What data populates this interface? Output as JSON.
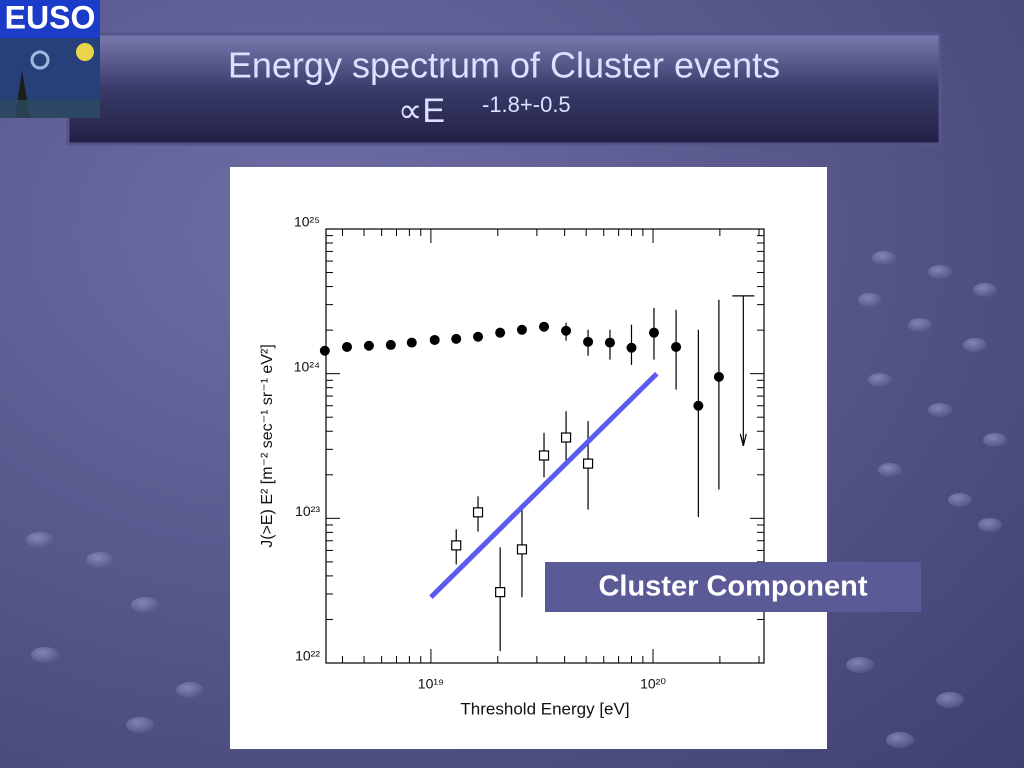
{
  "logo": "EUSO",
  "chart_data": {
    "type": "scatter",
    "title": "Energy spectrum of Cluster events",
    "subtitle": "∝E",
    "subtitle_exponent": "-1.8+-0.5",
    "xlabel": "Threshold Energy [eV]",
    "ylabel": "J(>E) E² [m⁻² sec⁻¹ sr⁻¹ eV²]",
    "annotation": "Cluster Component",
    "xscale": "log",
    "yscale": "log",
    "xlim": [
      3.37e+18,
      3.16e+20
    ],
    "ylim": [
      1e+22,
      1e+25
    ],
    "xticks": [
      {
        "value": 1e+19,
        "label": "10¹⁹"
      },
      {
        "value": 1e+20,
        "label": "10²⁰"
      }
    ],
    "yticks": [
      {
        "value": 1e+22,
        "label": "10²²"
      },
      {
        "value": 1e+23,
        "label": "10²³"
      },
      {
        "value": 1e+24,
        "label": "10²⁴"
      },
      {
        "value": 1e+25,
        "label": "10²⁵"
      }
    ],
    "xminorticks": [
      4e+18,
      5e+18,
      6e+18,
      7e+18,
      8e+18,
      9e+18,
      2e+19,
      3e+19,
      4e+19,
      5e+19,
      6e+19,
      7e+19,
      8e+19,
      9e+19,
      2e+20,
      3e+20
    ],
    "yminorticks": [
      2e+22,
      3e+22,
      4e+22,
      5e+22,
      6e+22,
      7e+22,
      8e+22,
      9e+22,
      2e+23,
      3e+23,
      4e+23,
      5e+23,
      6e+23,
      7e+23,
      8e+23,
      9e+23,
      2e+24,
      3e+24,
      4e+24,
      5e+24,
      6e+24,
      7e+24,
      8e+24,
      9e+24
    ],
    "series": [
      {
        "marker": "circle",
        "color": "#000000",
        "x": [
          3.33e+18,
          4.19e+18,
          5.26e+18,
          6.6e+18,
          8.2e+18,
          1.04e+19,
          1.3e+19,
          1.63e+19,
          2.05e+19,
          2.57e+19,
          3.23e+19,
          4.06e+19,
          5.1e+19,
          6.4e+19,
          8e+19,
          1.01e+20,
          1.27e+20,
          1.6e+20,
          1.98e+20
        ],
        "values": [
          1.44e+24,
          1.53e+24,
          1.56e+24,
          1.58e+24,
          1.64e+24,
          1.71e+24,
          1.74e+24,
          1.8e+24,
          1.92e+24,
          2.01e+24,
          2.11e+24,
          1.98e+24,
          1.66e+24,
          1.64e+24,
          1.51e+24,
          1.92e+24,
          1.53e+24,
          6e+23,
          9.5e+23
        ],
        "lower": [
          null,
          null,
          null,
          null,
          null,
          null,
          null,
          null,
          null,
          null,
          null,
          1.69e+24,
          1.33e+24,
          1.25e+24,
          1.15e+24,
          1.25e+24,
          7.76e+23,
          1.02e+23,
          1.58e+23
        ],
        "upper": [
          null,
          null,
          null,
          null,
          null,
          null,
          null,
          null,
          null,
          null,
          null,
          2.25e+24,
          2.01e+24,
          2.01e+24,
          2.18e+24,
          2.85e+24,
          2.76e+24,
          2.01e+24,
          3.24e+24
        ]
      },
      {
        "marker": "square",
        "color": "#000000",
        "x": [
          1.3e+19,
          1.63e+19,
          2.05e+19,
          2.57e+19,
          3.23e+19,
          4.06e+19,
          5.1e+19
        ],
        "values": [
          6.5e+22,
          1.1e+23,
          3.09e+22,
          6.1e+22,
          2.72e+23,
          3.62e+23,
          2.39e+23
        ],
        "lower": [
          4.8e+22,
          8.1e+22,
          1.21e+22,
          2.85e+22,
          1.92e+23,
          2.47e+23,
          1.15e+23
        ],
        "upper": [
          8.4e+22,
          1.42e+23,
          6.3e+22,
          1.15e+23,
          3.9e+23,
          5.5e+23,
          4.7e+23
        ]
      },
      {
        "marker": "upper-limit",
        "color": "#000000",
        "x": [
          2.55e+20
        ],
        "values": [
          3.45e+24
        ]
      },
      {
        "marker": "line",
        "color": "#5b5bf0",
        "x": [
          1e+19,
          1.04e+20
        ],
        "values": [
          2.85e+22,
          1e+24
        ]
      }
    ]
  }
}
